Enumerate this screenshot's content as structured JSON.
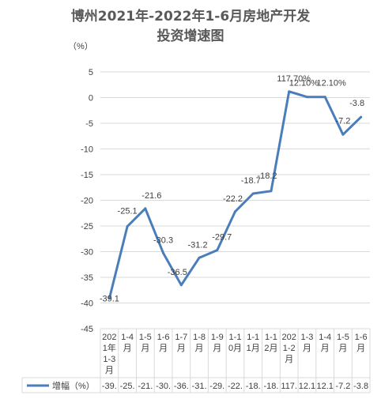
{
  "title_lines": [
    "博州2021年-2022年1-6月房地产开发",
    "投资增速图"
  ],
  "unit_label": "（%）",
  "chart_data": {
    "type": "line",
    "title": "博州2021年-2022年1-6月房地产开发投资增速图",
    "ylabel": "（%）",
    "xlabel": "",
    "ylim": [
      -45,
      5
    ],
    "yticks": [
      5,
      0,
      -5,
      -10,
      -15,
      -20,
      -25,
      -30,
      -35,
      -40,
      -45
    ],
    "grid": true,
    "categories": [
      [
        "202",
        "1年",
        "1-3",
        "月"
      ],
      [
        "1-4",
        "月"
      ],
      [
        "1-5",
        "月"
      ],
      [
        "1-6",
        "月"
      ],
      [
        "1-7",
        "月"
      ],
      [
        "1-8",
        "月"
      ],
      [
        "1-9",
        "月"
      ],
      [
        "1-1",
        "0月"
      ],
      [
        "1-1",
        "1月"
      ],
      [
        "1-1",
        "2月"
      ],
      [
        "202",
        "1-2",
        "月"
      ],
      [
        "1-3",
        "月"
      ],
      [
        "1-4",
        "月"
      ],
      [
        "1-5",
        "月"
      ],
      [
        "1-6",
        "月"
      ]
    ],
    "series": [
      {
        "name": "增幅（%）",
        "color": "#4a7ebb",
        "values": [
          -39.1,
          -25.1,
          -21.6,
          -30.3,
          -36.5,
          -31.2,
          -29.7,
          -22.2,
          -18.7,
          -18.2,
          1.177,
          0.121,
          0.121,
          -7.2,
          -3.8
        ],
        "data_labels": [
          "-39.1",
          "-25.1",
          "-21.6",
          "-30.3",
          "-36.5",
          "-31.2",
          "-29.7",
          "-22.2",
          "-18.7",
          "-18.2",
          "117.70%",
          "12.10%",
          "12.10%",
          "-7.2",
          "-3.8"
        ]
      }
    ],
    "table_values": [
      "-39.",
      "-25.",
      "-21.",
      "-30.",
      "-36.",
      "-31.",
      "-29.",
      "-22.",
      "-18.",
      "-18.",
      "117.",
      "12.1",
      "12.1",
      "-7.2",
      "-3.8"
    ],
    "legend_position": "bottom-left (data table key)"
  }
}
